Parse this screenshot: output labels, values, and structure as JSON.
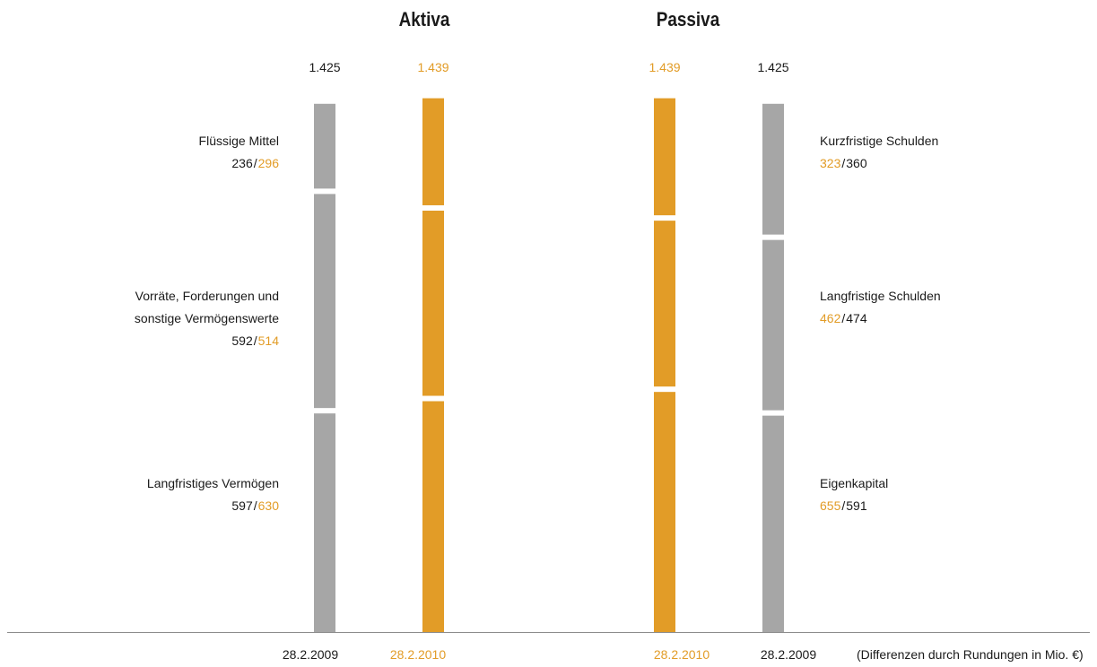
{
  "titles": {
    "assets": "Aktiva",
    "liabilities": "Passiva"
  },
  "colors": {
    "prev": "#a6a6a6",
    "curr": "#e29c27",
    "text": "#1a1a1a",
    "axis": "#8c8c8c"
  },
  "note": "(Differenzen durch Rundungen in Mio. €)",
  "chart_data": {
    "type": "bar",
    "stacked": true,
    "unit": "Mio. €",
    "dates": {
      "prev": "28.2.2009",
      "curr": "28.2.2010"
    },
    "totals": {
      "prev": "1.425",
      "curr": "1.439"
    },
    "aktiva": {
      "title": "Aktiva",
      "segments_top_to_bottom": [
        {
          "label_lines": [
            "Flüssige Mittel"
          ],
          "prev": 236,
          "curr": 296,
          "prev_label": "236",
          "curr_label": "296"
        },
        {
          "label_lines": [
            "Vorräte, Forderungen und",
            "sonstige Vermögenswerte"
          ],
          "prev": 592,
          "curr": 514,
          "prev_label": "592",
          "curr_label": "514"
        },
        {
          "label_lines": [
            "Langfristiges Vermögen"
          ],
          "prev": 597,
          "curr": 630,
          "prev_label": "597",
          "curr_label": "630"
        }
      ]
    },
    "passiva": {
      "title": "Passiva",
      "segments_top_to_bottom": [
        {
          "label_lines": [
            "Kurzfristige Schulden"
          ],
          "prev": 360,
          "curr": 323,
          "prev_label": "360",
          "curr_label": "323"
        },
        {
          "label_lines": [
            "Langfristige Schulden"
          ],
          "prev": 474,
          "curr": 462,
          "prev_label": "474",
          "curr_label": "462"
        },
        {
          "label_lines": [
            "Eigenkapital"
          ],
          "prev": 591,
          "curr": 655,
          "prev_label": "591",
          "curr_label": "655"
        }
      ]
    }
  }
}
